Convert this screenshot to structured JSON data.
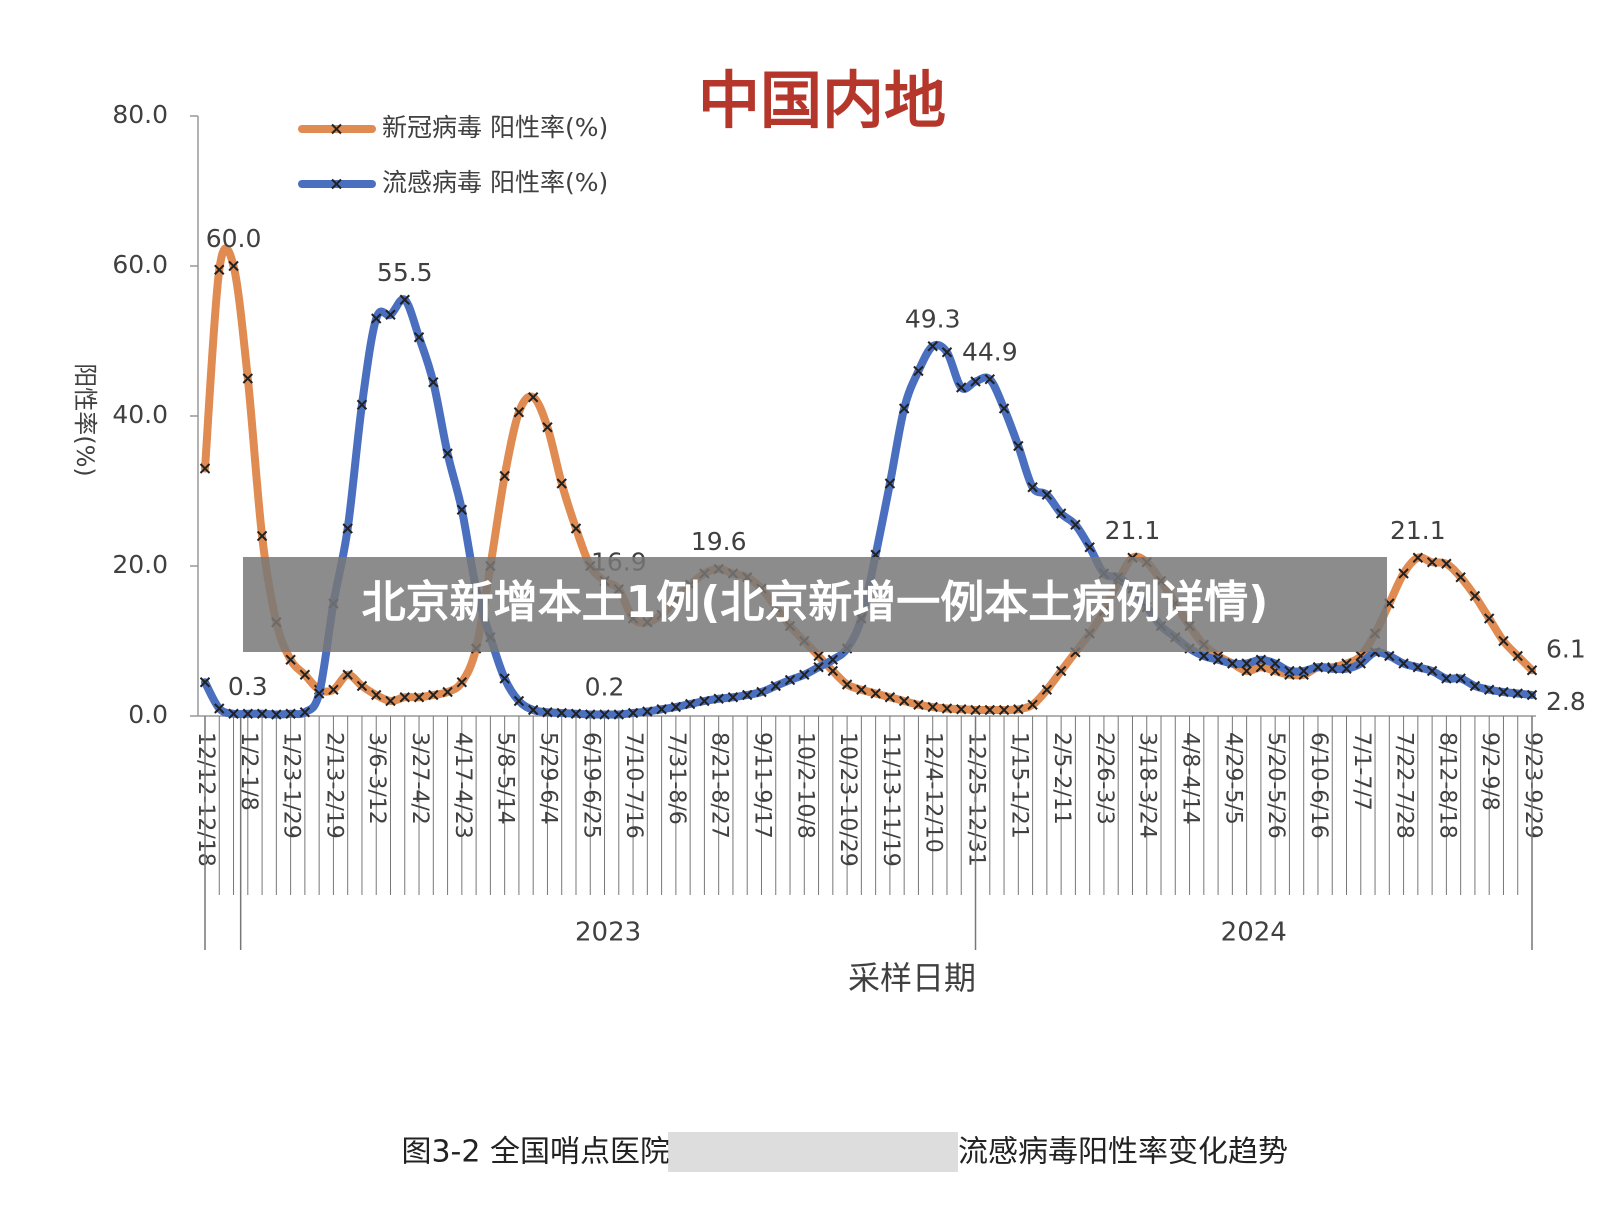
{
  "chart_data": {
    "type": "line",
    "title": "中国内地",
    "ylabel": "阳性率(%)",
    "xlabel": "采样日期",
    "year_labels": [
      "2023",
      "2024"
    ],
    "categories": [
      "12/12-12/18",
      null,
      null,
      "1/2-1/8",
      null,
      null,
      "1/23-1/29",
      null,
      null,
      "2/13-2/19",
      null,
      null,
      "3/6-3/12",
      null,
      null,
      "3/27-4/2",
      null,
      null,
      "4/17-4/23",
      null,
      null,
      "5/8-5/14",
      null,
      null,
      "5/29-6/4",
      null,
      null,
      "6/19-6/25",
      null,
      null,
      "7/10-7/16",
      null,
      null,
      "7/31-8/6",
      null,
      null,
      "8/21-8/27",
      null,
      null,
      "9/11-9/17",
      null,
      null,
      "10/2-10/8",
      null,
      null,
      "10/23-10/29",
      null,
      null,
      "11/13-11/19",
      null,
      null,
      "12/4-12/10",
      null,
      null,
      "12/25-12/31",
      null,
      null,
      "1/15-1/21",
      null,
      null,
      "2/5-2/11",
      null,
      null,
      "2/26-3/3",
      null,
      null,
      "3/18-3/24",
      null,
      null,
      "4/8-4/14",
      null,
      null,
      "4/29-5/5",
      null,
      null,
      "5/20-5/26",
      null,
      null,
      "6/10-6/16",
      null,
      null,
      "7/1-7/7",
      null,
      null,
      "7/22-7/28",
      null,
      null,
      "8/12-8/18",
      null,
      null,
      "9/2-9/8",
      null,
      null,
      "9/23-9/29"
    ],
    "series": [
      {
        "name": "新冠病毒 阳性率(%)",
        "color": "#df8b52",
        "values": [
          33,
          59.5,
          60.0,
          45,
          24,
          12.5,
          7.5,
          5.5,
          3.5,
          3.5,
          5.5,
          4,
          2.8,
          2,
          2.5,
          2.5,
          2.8,
          3.2,
          4.5,
          9,
          20,
          32,
          40.5,
          42.5,
          38.5,
          31,
          25,
          20,
          18,
          16.9,
          13,
          12.5,
          13.5,
          15.5,
          17.5,
          19,
          19.6,
          19,
          18.5,
          17,
          14.5,
          12,
          10,
          8,
          6,
          4.2,
          3.5,
          3,
          2.5,
          2,
          1.5,
          1.2,
          1,
          0.9,
          0.8,
          0.8,
          0.8,
          0.9,
          1.5,
          3.5,
          6,
          8.5,
          11,
          14,
          18,
          21.1,
          20.5,
          18,
          15,
          12,
          9.5,
          8,
          7,
          6,
          6.5,
          6,
          5.5,
          5.5,
          6.5,
          6.5,
          7,
          8,
          11,
          15,
          19,
          21.1,
          20.5,
          20.3,
          18.5,
          16,
          13,
          10,
          8,
          6.1
        ],
        "value_labels": [
          null,
          null,
          "60.0",
          null,
          null,
          null,
          null,
          null,
          null,
          null,
          null,
          null,
          null,
          null,
          null,
          null,
          null,
          null,
          null,
          null,
          null,
          null,
          null,
          null,
          null,
          null,
          null,
          null,
          null,
          "16.9",
          null,
          null,
          null,
          null,
          null,
          null,
          "19.6",
          null,
          null,
          null,
          null,
          null,
          null,
          null,
          null,
          null,
          null,
          null,
          null,
          null,
          null,
          null,
          null,
          null,
          null,
          null,
          null,
          null,
          null,
          null,
          null,
          null,
          null,
          null,
          null,
          "21.1",
          null,
          null,
          null,
          null,
          null,
          null,
          null,
          null,
          null,
          null,
          null,
          null,
          null,
          null,
          null,
          null,
          null,
          null,
          null,
          "21.1",
          null,
          null,
          null,
          null,
          null,
          null,
          null,
          "6.1"
        ]
      },
      {
        "name": "流感病毒 阳性率(%)",
        "color": "#4a6fbf",
        "values": [
          4.5,
          1,
          0.3,
          0.3,
          0.3,
          0.2,
          0.3,
          0.5,
          3,
          15,
          25,
          41.5,
          53,
          53.5,
          55.5,
          50.5,
          44.5,
          35,
          27.5,
          17,
          10.5,
          5,
          2,
          0.8,
          0.5,
          0.4,
          0.3,
          0.2,
          0.2,
          0.2,
          0.4,
          0.6,
          0.9,
          1.2,
          1.6,
          2,
          2.3,
          2.5,
          2.8,
          3.2,
          4,
          4.8,
          5.5,
          6.5,
          7.5,
          9,
          13,
          21.5,
          31,
          41,
          46,
          49.3,
          48.5,
          43.8,
          44.6,
          44.9,
          41,
          36,
          30.5,
          29.5,
          27,
          25.5,
          22.5,
          19,
          18.5,
          17,
          14.5,
          12,
          10.5,
          9,
          8,
          7.5,
          7,
          7,
          7.5,
          7,
          6,
          6,
          6.5,
          6.3,
          6.3,
          7,
          8.5,
          8,
          7,
          6.5,
          6,
          5,
          5,
          4,
          3.5,
          3.2,
          3,
          2.8
        ],
        "value_labels": [
          null,
          null,
          null,
          "0.3",
          null,
          null,
          null,
          null,
          null,
          null,
          null,
          null,
          null,
          null,
          "55.5",
          null,
          null,
          null,
          null,
          null,
          null,
          null,
          null,
          null,
          null,
          null,
          null,
          null,
          "0.2",
          null,
          null,
          null,
          null,
          null,
          null,
          null,
          null,
          null,
          null,
          null,
          null,
          null,
          null,
          null,
          null,
          null,
          null,
          null,
          null,
          null,
          null,
          "49.3",
          null,
          null,
          null,
          "44.9",
          null,
          null,
          null,
          null,
          null,
          null,
          null,
          null,
          null,
          null,
          null,
          null,
          null,
          null,
          null,
          null,
          null,
          null,
          null,
          null,
          null,
          null,
          null,
          null,
          null,
          null,
          null,
          null,
          null,
          null,
          null,
          null,
          null,
          null,
          null,
          null,
          null,
          "2.8"
        ]
      }
    ],
    "ylim": [
      0,
      80
    ],
    "yticks": [
      {
        "value": 0,
        "label": "0.0"
      },
      {
        "value": 20,
        "label": "20.0"
      },
      {
        "value": 40,
        "label": "40.0"
      },
      {
        "value": 60,
        "label": "60.0"
      },
      {
        "value": 80,
        "label": "80.0"
      }
    ]
  },
  "caption": {
    "left": "图3-2 全国哨点医院",
    "right": "流感病毒阳性率变化趋势"
  },
  "banner": "北京新增本土1例(北京新增一例本土病例详情)"
}
